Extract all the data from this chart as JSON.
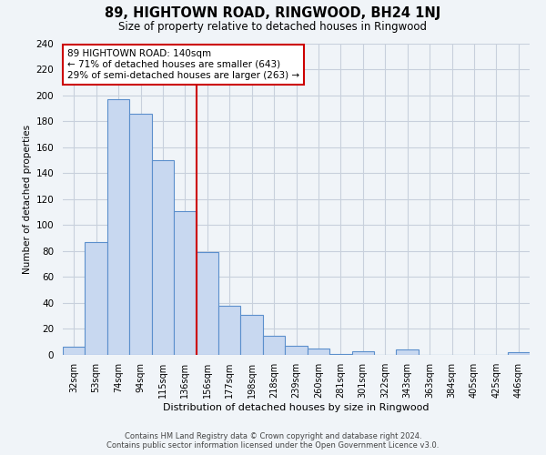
{
  "title": "89, HIGHTOWN ROAD, RINGWOOD, BH24 1NJ",
  "subtitle": "Size of property relative to detached houses in Ringwood",
  "xlabel": "Distribution of detached houses by size in Ringwood",
  "ylabel": "Number of detached properties",
  "footnote1": "Contains HM Land Registry data © Crown copyright and database right 2024.",
  "footnote2": "Contains public sector information licensed under the Open Government Licence v3.0.",
  "bar_labels": [
    "32sqm",
    "53sqm",
    "74sqm",
    "94sqm",
    "115sqm",
    "136sqm",
    "156sqm",
    "177sqm",
    "198sqm",
    "218sqm",
    "239sqm",
    "260sqm",
    "281sqm",
    "301sqm",
    "322sqm",
    "343sqm",
    "363sqm",
    "384sqm",
    "405sqm",
    "425sqm",
    "446sqm"
  ],
  "bar_values": [
    6,
    87,
    197,
    186,
    150,
    111,
    79,
    38,
    31,
    15,
    7,
    5,
    1,
    3,
    0,
    4,
    0,
    0,
    0,
    0,
    2
  ],
  "bar_color": "#c8d8f0",
  "bar_edge_color": "#5b8fcc",
  "property_line_label": "89 HIGHTOWN ROAD: 140sqm",
  "annotation_line1": "← 71% of detached houses are smaller (643)",
  "annotation_line2": "29% of semi-detached houses are larger (263) →",
  "annotation_box_color": "#ffffff",
  "annotation_box_edge": "#cc0000",
  "property_line_color": "#cc0000",
  "property_line_bin_index": 5,
  "ylim": [
    0,
    240
  ],
  "yticks": [
    0,
    20,
    40,
    60,
    80,
    100,
    120,
    140,
    160,
    180,
    200,
    220,
    240
  ],
  "grid_color": "#c8d0dc",
  "background_color": "#f0f4f8",
  "title_fontsize": 10.5,
  "subtitle_fontsize": 8.5
}
